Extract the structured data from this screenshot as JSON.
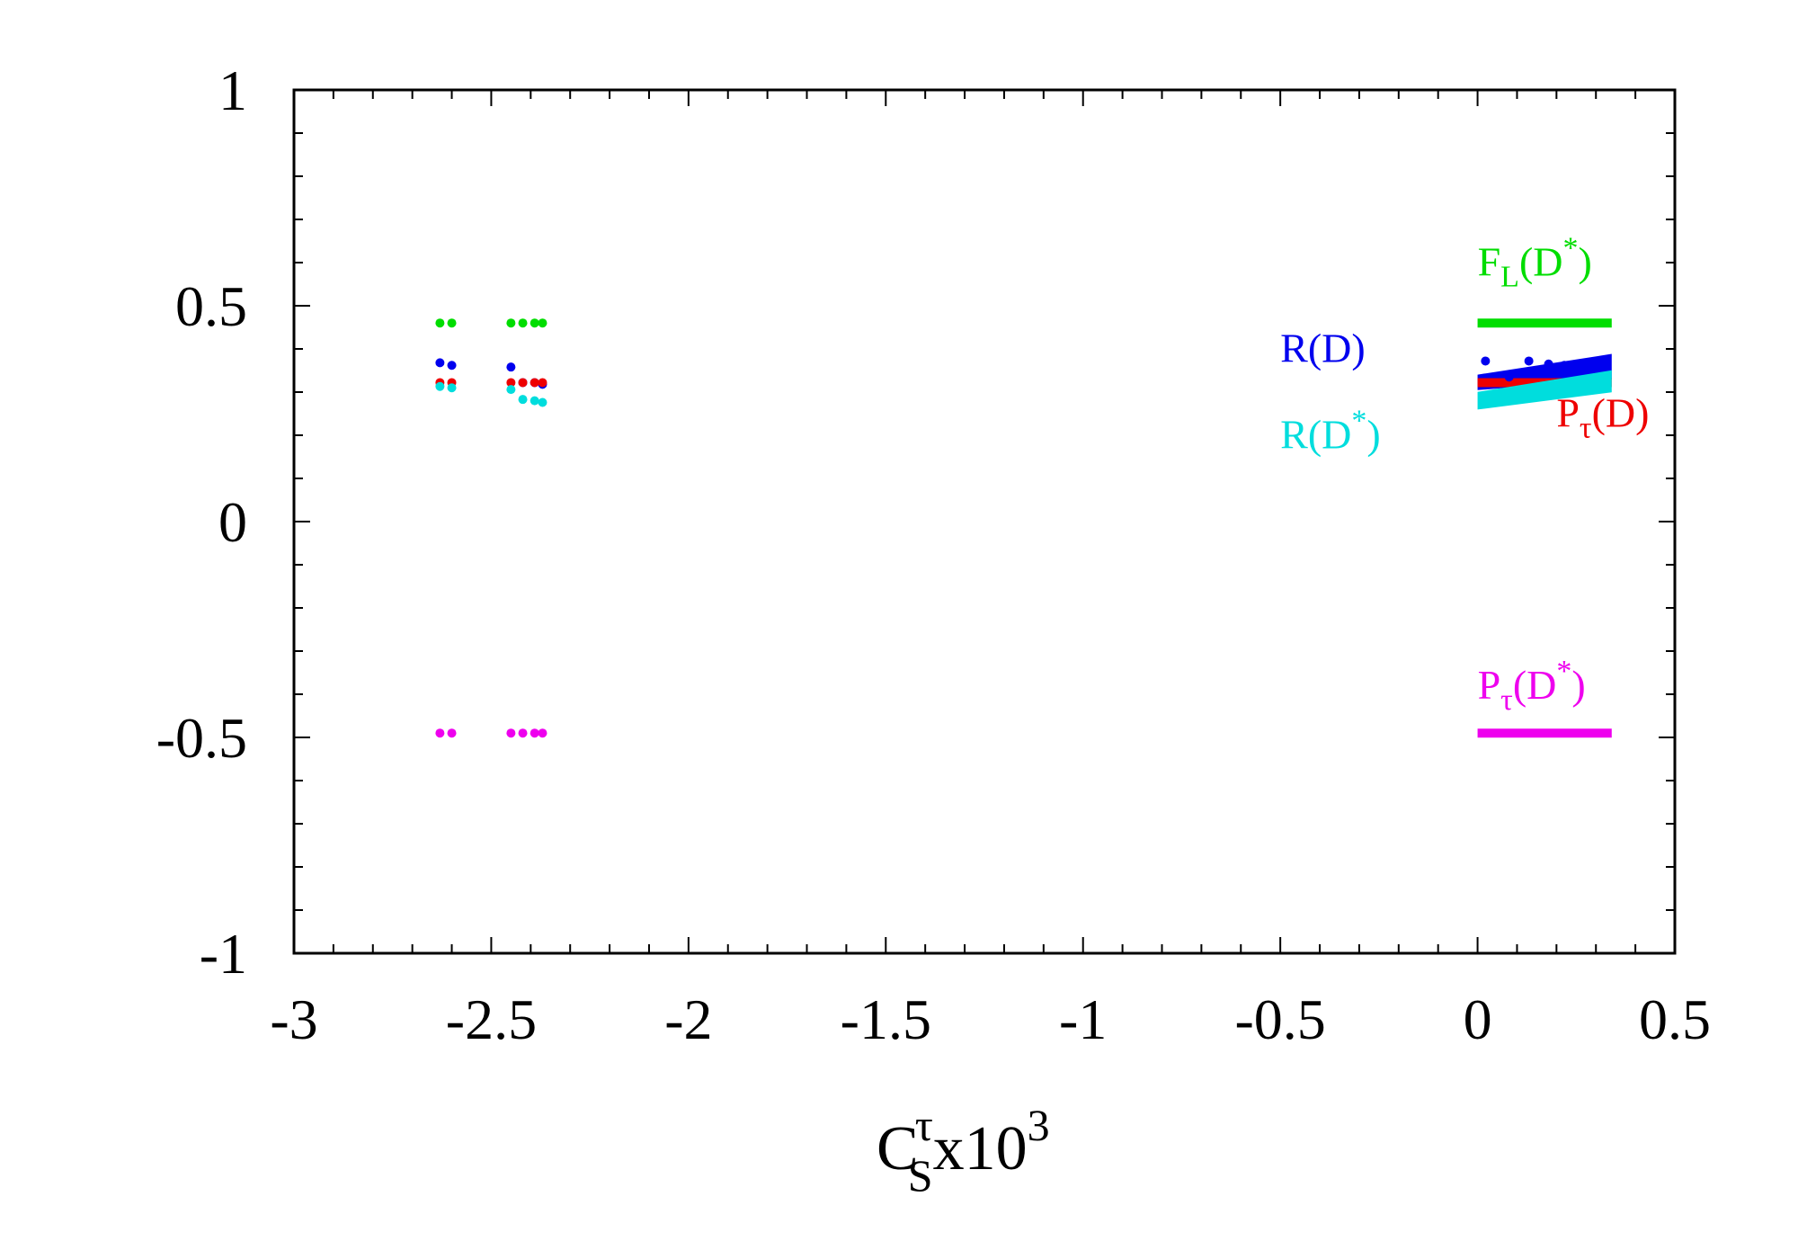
{
  "chart_data": {
    "type": "scatter",
    "title": "",
    "xlabel": {
      "base": "C",
      "sup": "τ",
      "sub": "S",
      "suffix": "x10",
      "suffix_sup": "3"
    },
    "ylabel": "",
    "xlim": [
      -3,
      0.5
    ],
    "ylim": [
      -1,
      1
    ],
    "xticks": [
      "-3",
      "-2.5",
      "-2",
      "-1.5",
      "-1",
      "-0.5",
      "0",
      "0.5"
    ],
    "yticks": [
      "-1",
      "-0.5",
      "0",
      "0.5",
      "1"
    ],
    "grid": false,
    "series": [
      {
        "key": "fl",
        "name": "F(D)",
        "label": {
          "base": "F",
          "sub": "L",
          "paren": "(D",
          "sup": "*",
          "close": ")"
        },
        "color": "#00dd00",
        "points": [
          [
            -2.63,
            0.46
          ],
          [
            -2.6,
            0.46
          ],
          [
            -2.45,
            0.46
          ],
          [
            -2.42,
            0.46
          ],
          [
            -2.39,
            0.46
          ],
          [
            -2.37,
            0.46
          ]
        ],
        "band": {
          "x": [
            0.0,
            0.34
          ],
          "y0": [
            0.46,
            0.46
          ],
          "y1": [
            0.46,
            0.46
          ]
        }
      },
      {
        "key": "rd",
        "name": "R(D)",
        "label": {
          "base": "R(D)"
        },
        "color": "#0000ee",
        "points": [
          [
            -2.63,
            0.368
          ],
          [
            -2.6,
            0.362
          ],
          [
            -2.45,
            0.358
          ],
          [
            -2.42,
            0.322
          ],
          [
            -2.39,
            0.322
          ],
          [
            -2.37,
            0.318
          ],
          [
            0.02,
            0.372
          ],
          [
            0.08,
            0.335
          ],
          [
            0.13,
            0.372
          ],
          [
            0.18,
            0.365
          ],
          [
            0.22,
            0.362
          ]
        ],
        "band": {
          "x": [
            0.0,
            0.34
          ],
          "y0": [
            0.315,
            0.34
          ],
          "y1": [
            0.33,
            0.378
          ]
        }
      },
      {
        "key": "ptd",
        "name": "P(D)",
        "label": {
          "base": "P",
          "sub": "τ",
          "paren": "(D",
          "close": ")"
        },
        "color": "#ee0000",
        "points": [
          [
            -2.63,
            0.322
          ],
          [
            -2.6,
            0.322
          ],
          [
            -2.45,
            0.322
          ],
          [
            -2.42,
            0.322
          ],
          [
            -2.39,
            0.322
          ],
          [
            -2.37,
            0.322
          ]
        ],
        "band": {
          "x": [
            0.0,
            0.34
          ],
          "y0": [
            0.322,
            0.322
          ],
          "y1": [
            0.322,
            0.322
          ]
        }
      },
      {
        "key": "rds",
        "name": "R(D)",
        "label": {
          "base": "R(D",
          "sup": "*",
          "close": ")"
        },
        "color": "#00dddd",
        "points": [
          [
            -2.63,
            0.313
          ],
          [
            -2.6,
            0.31
          ],
          [
            -2.45,
            0.306
          ],
          [
            -2.42,
            0.283
          ],
          [
            -2.39,
            0.28
          ],
          [
            -2.37,
            0.276
          ]
        ],
        "band": {
          "x": [
            0.0,
            0.34
          ],
          "y0": [
            0.27,
            0.31
          ],
          "y1": [
            0.29,
            0.34
          ]
        }
      },
      {
        "key": "ptds",
        "name": "P(D)",
        "label": {
          "base": "P",
          "sub": "τ",
          "paren": "(D",
          "sup": "*",
          "close": ")"
        },
        "color": "#ee00ee",
        "points": [
          [
            -2.63,
            -0.49
          ],
          [
            -2.6,
            -0.49
          ],
          [
            -2.45,
            -0.49
          ],
          [
            -2.42,
            -0.49
          ],
          [
            -2.39,
            -0.49
          ],
          [
            -2.37,
            -0.49
          ]
        ],
        "band": {
          "x": [
            0.0,
            0.34
          ],
          "y0": [
            -0.49,
            -0.49
          ],
          "y1": [
            -0.49,
            -0.49
          ]
        }
      }
    ],
    "annotations": [
      {
        "series": "fl",
        "x": 0.0,
        "y": 0.57
      },
      {
        "series": "rd",
        "x": -0.5,
        "y": 0.37
      },
      {
        "series": "ptd",
        "x": 0.2,
        "y": 0.22
      },
      {
        "series": "rds",
        "x": -0.5,
        "y": 0.17
      },
      {
        "series": "ptds",
        "x": 0.0,
        "y": -0.41
      }
    ]
  }
}
